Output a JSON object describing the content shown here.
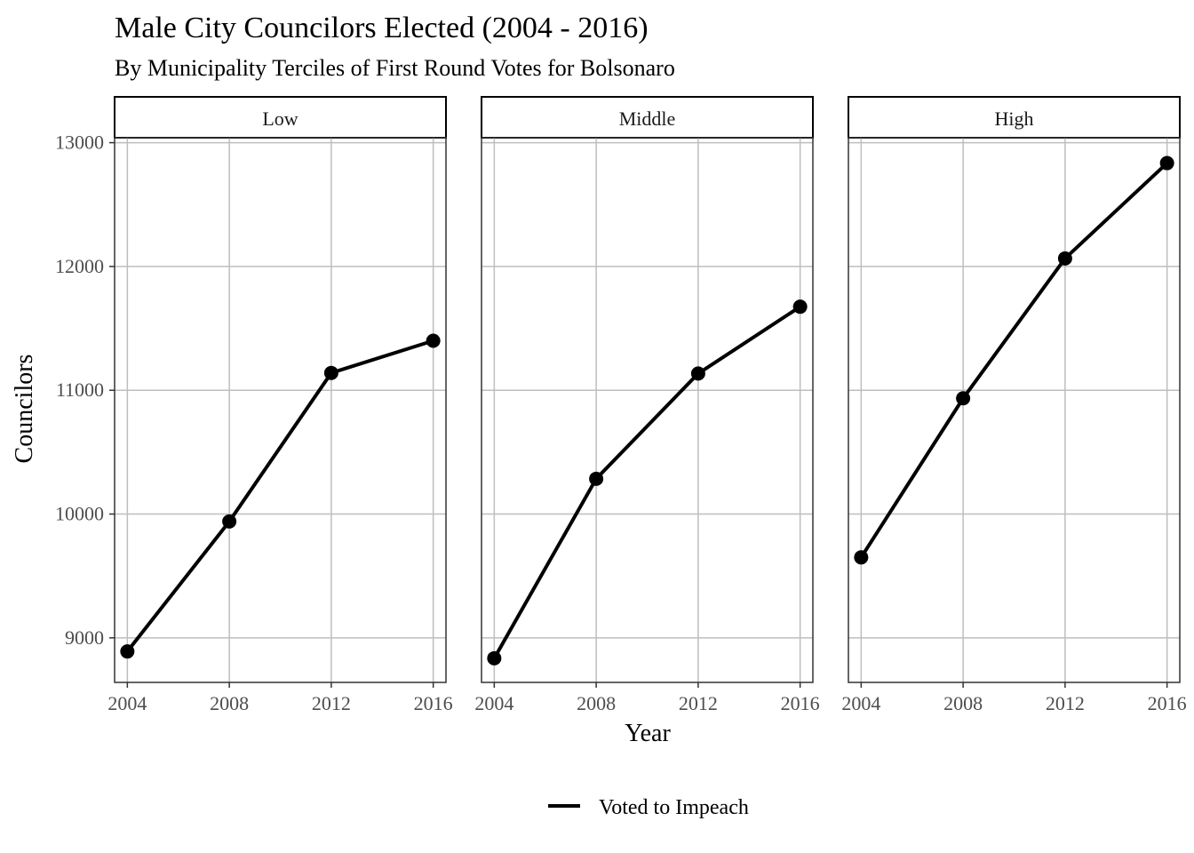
{
  "chart_data": {
    "type": "line",
    "title": "Male City Councilors Elected (2004 - 2016)",
    "subtitle": "By Municipality Terciles of First Round Votes for Bolsonaro",
    "xlabel": "Year",
    "ylabel": "Councilors",
    "x": [
      2004,
      2008,
      2012,
      2016
    ],
    "xticks": [
      "2004",
      "2008",
      "2012",
      "2016"
    ],
    "xlim": [
      2003.5,
      2016.5
    ],
    "yticks": [
      "9000",
      "10000",
      "11000",
      "12000",
      "13000"
    ],
    "ylim": [
      8640,
      13040
    ],
    "grid": true,
    "legend": {
      "position": "bottom",
      "entries": [
        "Voted to Impeach"
      ]
    },
    "panels": [
      {
        "label": "Low",
        "series": [
          {
            "name": "Voted to Impeach",
            "values": [
              8890,
              9940,
              11140,
              11400
            ]
          }
        ]
      },
      {
        "label": "Middle",
        "series": [
          {
            "name": "Voted to Impeach",
            "values": [
              8835,
              10285,
              11135,
              11675
            ]
          }
        ]
      },
      {
        "label": "High",
        "series": [
          {
            "name": "Voted to Impeach",
            "values": [
              9650,
              10935,
              12065,
              12835
            ]
          }
        ]
      }
    ],
    "colors": {
      "line": "#000000",
      "grid": "#bebebe",
      "frame": "#333333"
    }
  }
}
